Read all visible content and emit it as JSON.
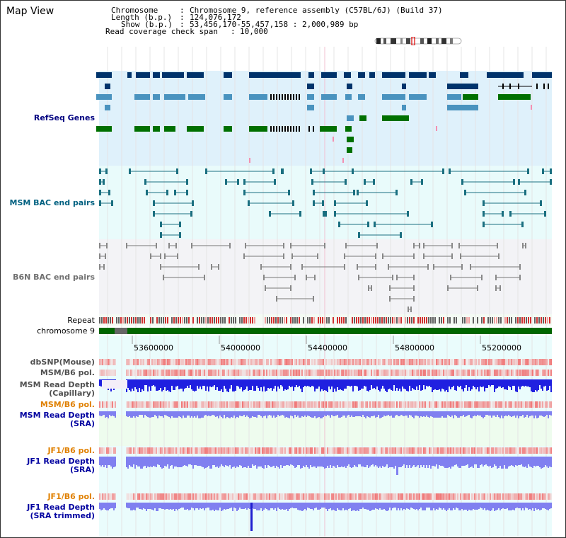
{
  "page": {
    "title": "Map View",
    "info": {
      "chromosome_key": "Chromosome",
      "chromosome_val": "Chromosome 9, reference assembly (C57BL/6J) (Build 37)",
      "length_key": "Length (b.p.)",
      "length_val": "124,076,172",
      "show_key": "Show (b.p.)",
      "show_val": "53,456,170-55,457,158 : 2,000,989 bp",
      "coverage_key": "Read coverage check span",
      "coverage_val": "10,000"
    }
  },
  "tracks": {
    "refseq": "RefSeq Genes",
    "msm_bac": "MSM BAC end pairs",
    "b6n_bac": "B6N BAC end pairs",
    "repeat": "Repeat",
    "chromosome": "chromosome 9",
    "dbsnp": "dbSNP(Mouse)",
    "msm_b6_pol": "MSM/B6 pol.",
    "msm_read_cap": "MSM Read Depth\n(Capillary)",
    "msm_b6_pol2": "MSM/B6 pol.",
    "msm_read_sra": "MSM Read Depth\n(SRA)",
    "jf1_b6_pol": "JF1/B6 pol.",
    "jf1_read_sra": "JF1 Read Depth\n(SRA)",
    "jf1_b6_pol2": "JF1/B6 pol.",
    "jf1_read_trim": "JF1 Read Depth\n(SRA trimmed)"
  },
  "axis": {
    "ticks": [
      "53600000",
      "54000000",
      "54400000",
      "54800000",
      "55200000"
    ]
  },
  "colors": {
    "refseq_bg": "#dff1fb",
    "bac_bg": "#e9fbfb",
    "b6n_bg": "#f3f3f6",
    "lower_bg": "#eafcfc",
    "gene_dark": "#00336b",
    "gene_mid": "#4a93bf",
    "gene_green": "#007000",
    "bac_line": "#1a6f80",
    "b6n_line": "#777777",
    "chrom": "#006600",
    "depth_blue": "#2020e0",
    "depth_light": "#8080f0",
    "pol_red": "#f06060"
  }
}
